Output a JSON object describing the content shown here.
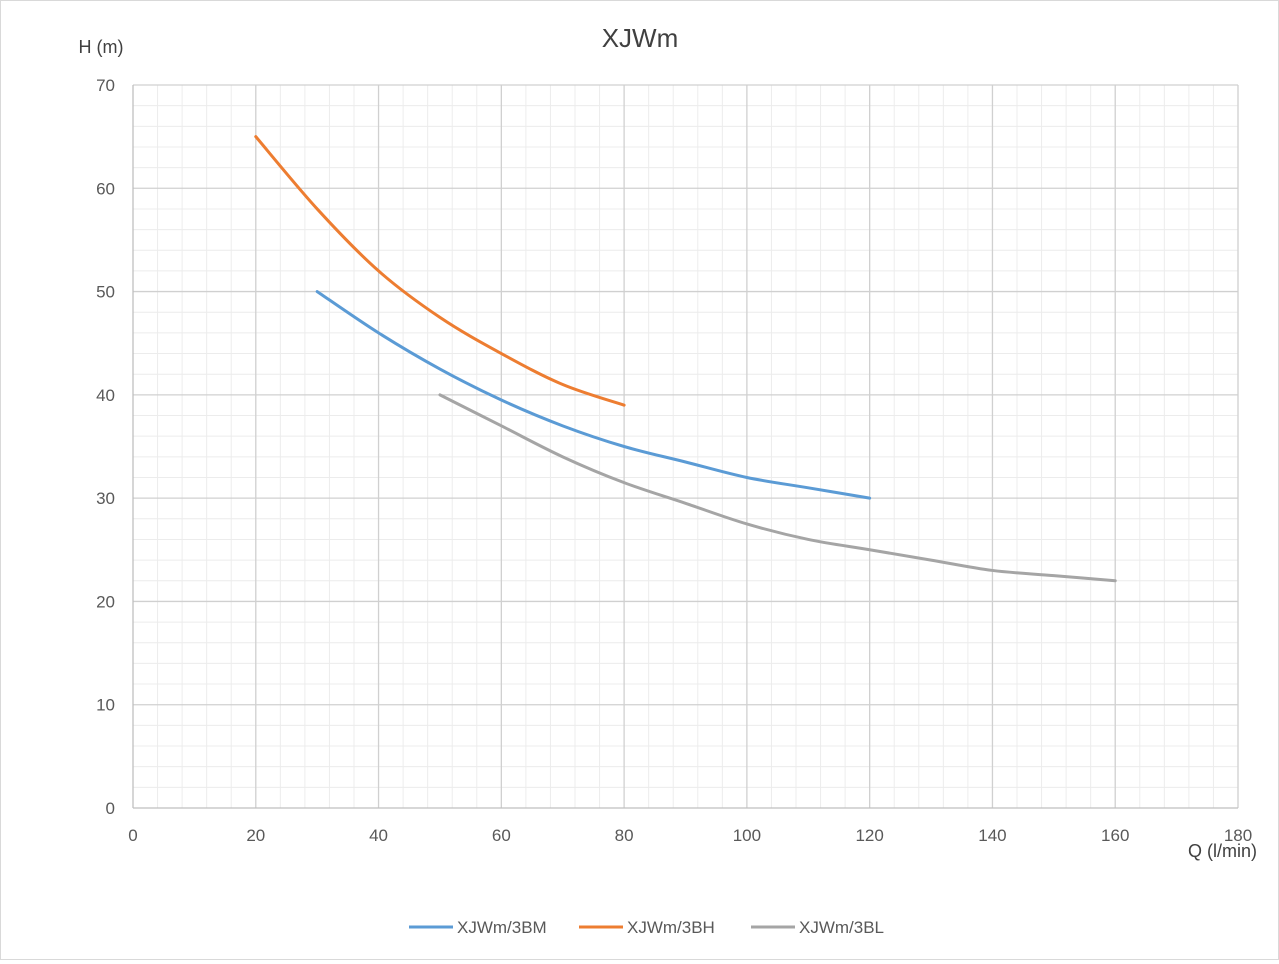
{
  "chart_data": {
    "type": "line",
    "title": "XJWm",
    "xlabel": "Q (l/min)",
    "ylabel": "H (m)",
    "xlim": [
      0,
      180
    ],
    "ylim": [
      0,
      70
    ],
    "x_ticks": [
      0,
      20,
      40,
      60,
      80,
      100,
      120,
      140,
      160,
      180
    ],
    "y_ticks": [
      0,
      10,
      20,
      30,
      40,
      50,
      60,
      70
    ],
    "grid": true,
    "minor_grid": true,
    "legend_position": "bottom",
    "series": [
      {
        "name": "XJWm/3BM",
        "color": "#5b9bd5",
        "x": [
          30,
          40,
          50,
          60,
          70,
          80,
          90,
          100,
          110,
          120
        ],
        "y": [
          50,
          46,
          42.5,
          39.5,
          37,
          35,
          33.5,
          32,
          31,
          30
        ]
      },
      {
        "name": "XJWm/3BH",
        "color": "#ed7d31",
        "x": [
          20,
          30,
          40,
          50,
          60,
          70,
          80
        ],
        "y": [
          65,
          58,
          52,
          47.5,
          44,
          41,
          39
        ]
      },
      {
        "name": "XJWm/3BL",
        "color": "#a5a5a5",
        "x": [
          50,
          60,
          70,
          80,
          90,
          100,
          110,
          120,
          130,
          140,
          150,
          160
        ],
        "y": [
          40,
          37,
          34,
          31.5,
          29.5,
          27.5,
          26,
          25,
          24,
          23,
          22.5,
          22
        ]
      }
    ]
  }
}
